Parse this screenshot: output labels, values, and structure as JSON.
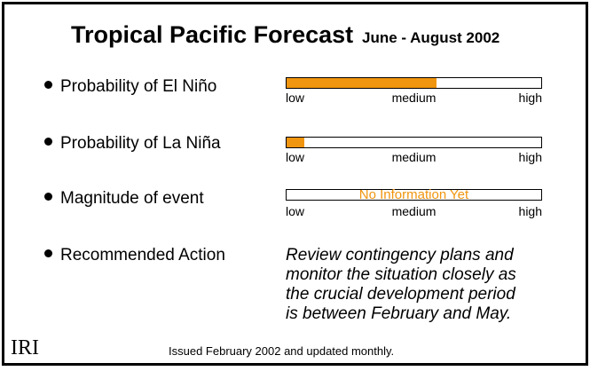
{
  "title": "Tropical Pacific Forecast",
  "subtitle": "June - August 2002",
  "rows": [
    {
      "label": "Probability of El Niño",
      "level": 0.59,
      "note": ""
    },
    {
      "label": "Probability of La Niña",
      "level": 0.07,
      "note": ""
    },
    {
      "label": "Magnitude of event",
      "level": 0,
      "note": "No Information Yet"
    }
  ],
  "scale": {
    "low": "low",
    "medium": "medium",
    "high": "high"
  },
  "recommendation": {
    "label": "Recommended Action",
    "text_lines": [
      "Review contingency plans and",
      "monitor the situation closely as",
      "the crucial development period",
      "is between February and May."
    ]
  },
  "logo": "IRI",
  "footer": "Issued February 2002 and updated monthly.",
  "colors": {
    "fill": "#f0950f",
    "frame": "#000000",
    "background": "#ffffff"
  }
}
